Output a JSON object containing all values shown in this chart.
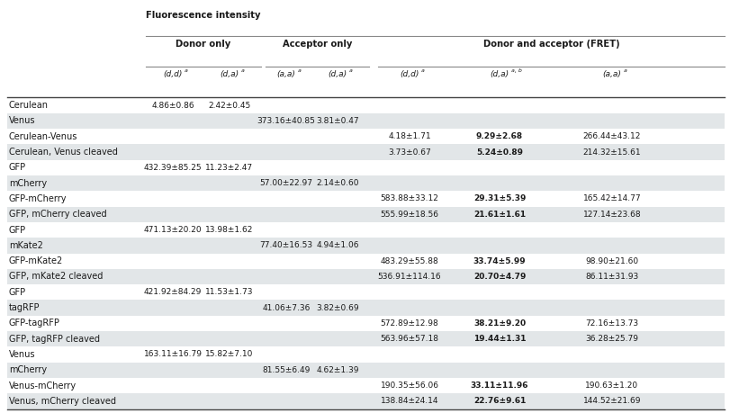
{
  "rows": [
    {
      "label": "Cerulean",
      "data": [
        "4.86±0.86",
        "2.42±0.45",
        "",
        "",
        "",
        "",
        ""
      ],
      "bold_col": -1,
      "shaded": false
    },
    {
      "label": "Venus",
      "data": [
        "",
        "",
        "373.16±40.85",
        "3.81±0.47",
        "",
        "",
        ""
      ],
      "bold_col": -1,
      "shaded": true
    },
    {
      "label": "Cerulean-Venus",
      "data": [
        "",
        "",
        "",
        "",
        "4.18±1.71",
        "9.29±2.68",
        "266.44±43.12"
      ],
      "bold_col": 5,
      "shaded": false
    },
    {
      "label": "Cerulean, Venus cleaved",
      "data": [
        "",
        "",
        "",
        "",
        "3.73±0.67",
        "5.24±0.89",
        "214.32±15.61"
      ],
      "bold_col": 5,
      "shaded": true
    },
    {
      "label": "GFP",
      "data": [
        "432.39±85.25",
        "11.23±2.47",
        "",
        "",
        "",
        "",
        ""
      ],
      "bold_col": -1,
      "shaded": false
    },
    {
      "label": "mCherry",
      "data": [
        "",
        "",
        "57.00±22.97",
        "2.14±0.60",
        "",
        "",
        ""
      ],
      "bold_col": -1,
      "shaded": true
    },
    {
      "label": "GFP-mCherry",
      "data": [
        "",
        "",
        "",
        "",
        "583.88±33.12",
        "29.31±5.39",
        "165.42±14.77"
      ],
      "bold_col": 5,
      "shaded": false
    },
    {
      "label": "GFP, mCherry cleaved",
      "data": [
        "",
        "",
        "",
        "",
        "555.99±18.56",
        "21.61±1.61",
        "127.14±23.68"
      ],
      "bold_col": 5,
      "shaded": true
    },
    {
      "label": "GFP",
      "data": [
        "471.13±20.20",
        "13.98±1.62",
        "",
        "",
        "",
        "",
        ""
      ],
      "bold_col": -1,
      "shaded": false
    },
    {
      "label": "mKate2",
      "data": [
        "",
        "",
        "77.40±16.53",
        "4.94±1.06",
        "",
        "",
        ""
      ],
      "bold_col": -1,
      "shaded": true
    },
    {
      "label": "GFP-mKate2",
      "data": [
        "",
        "",
        "",
        "",
        "483.29±55.88",
        "33.74±5.99",
        "98.90±21.60"
      ],
      "bold_col": 5,
      "shaded": false
    },
    {
      "label": "GFP, mKate2 cleaved",
      "data": [
        "",
        "",
        "",
        "",
        "536.91±114.16",
        "20.70±4.79",
        "86.11±31.93"
      ],
      "bold_col": 5,
      "shaded": true
    },
    {
      "label": "GFP",
      "data": [
        "421.92±84.29",
        "11.53±1.73",
        "",
        "",
        "",
        "",
        ""
      ],
      "bold_col": -1,
      "shaded": false
    },
    {
      "label": "tagRFP",
      "data": [
        "",
        "",
        "41.06±7.36",
        "3.82±0.69",
        "",
        "",
        ""
      ],
      "bold_col": -1,
      "shaded": true
    },
    {
      "label": "GFP-tagRFP",
      "data": [
        "",
        "",
        "",
        "",
        "572.89±12.98",
        "38.21±9.20",
        "72.16±13.73"
      ],
      "bold_col": 5,
      "shaded": false
    },
    {
      "label": "GFP, tagRFP cleaved",
      "data": [
        "",
        "",
        "",
        "",
        "563.96±57.18",
        "19.44±1.31",
        "36.28±25.79"
      ],
      "bold_col": 5,
      "shaded": true
    },
    {
      "label": "Venus",
      "data": [
        "163.11±16.79",
        "15.82±7.10",
        "",
        "",
        "",
        "",
        ""
      ],
      "bold_col": -1,
      "shaded": false
    },
    {
      "label": "mCherry",
      "data": [
        "",
        "",
        "81.55±6.49",
        "4.62±1.39",
        "",
        "",
        ""
      ],
      "bold_col": -1,
      "shaded": true
    },
    {
      "label": "Venus-mCherry",
      "data": [
        "",
        "",
        "",
        "",
        "190.35±56.06",
        "33.11±11.96",
        "190.63±1.20"
      ],
      "bold_col": 5,
      "shaded": false
    },
    {
      "label": "Venus, mCherry cleaved",
      "data": [
        "",
        "",
        "",
        "",
        "138.84±24.14",
        "22.76±9.61",
        "144.52±21.69"
      ],
      "bold_col": 5,
      "shaded": true
    }
  ],
  "bg_color": "#ffffff",
  "shaded_color": "#e2e6e8",
  "text_color": "#1a1a1a",
  "line_color": "#888888",
  "thick_line_color": "#444444"
}
